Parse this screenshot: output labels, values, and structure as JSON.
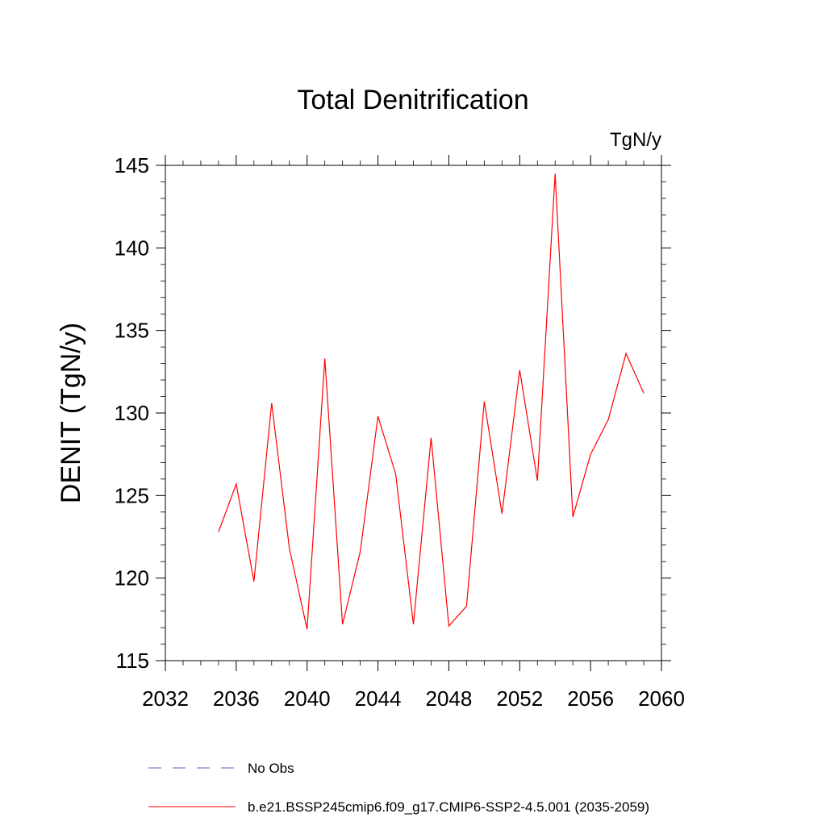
{
  "chart_data": {
    "type": "line",
    "title": "Total Denitrification",
    "units_label": "TgN/y",
    "ylabel": "DENIT  (TgN/y)",
    "xlabel": "",
    "xlim": [
      2032,
      2060
    ],
    "ylim": [
      115,
      145
    ],
    "x_ticks": [
      2032,
      2036,
      2040,
      2044,
      2048,
      2052,
      2056,
      2060
    ],
    "x_tick_labels": [
      "2032",
      "2036",
      "2040",
      "2044",
      "2048",
      "2052",
      "2056",
      "2060"
    ],
    "y_ticks": [
      115,
      120,
      125,
      130,
      135,
      140,
      145
    ],
    "y_tick_labels": [
      "115",
      "120",
      "125",
      "130",
      "135",
      "140",
      "145"
    ],
    "grid": false,
    "legend_position": "bottom",
    "series": [
      {
        "name": "b.e21.BSSP245cmip6.f09_g17.CMIP6-SSP2-4.5.001 (2035-2059)",
        "color": "#ff0000",
        "line_style": "solid",
        "x": [
          2035,
          2036,
          2037,
          2038,
          2039,
          2040,
          2041,
          2042,
          2043,
          2044,
          2045,
          2046,
          2047,
          2048,
          2049,
          2050,
          2051,
          2052,
          2053,
          2054,
          2055,
          2056,
          2057,
          2058,
          2059
        ],
        "y": [
          122.8,
          125.7,
          119.8,
          130.6,
          121.8,
          116.9,
          133.3,
          117.2,
          121.6,
          129.8,
          126.3,
          117.2,
          128.5,
          117.1,
          118.3,
          130.7,
          123.9,
          132.6,
          125.9,
          144.5,
          123.7,
          127.5,
          129.6,
          133.6,
          131.2
        ]
      }
    ],
    "legend": [
      {
        "label": "No Obs",
        "color": "#5b5bbf",
        "line_style": "dashed"
      },
      {
        "label": "b.e21.BSSP245cmip6.f09_g17.CMIP6-SSP2-4.5.001 (2035-2059)",
        "color": "#ff0000",
        "line_style": "solid"
      }
    ]
  }
}
